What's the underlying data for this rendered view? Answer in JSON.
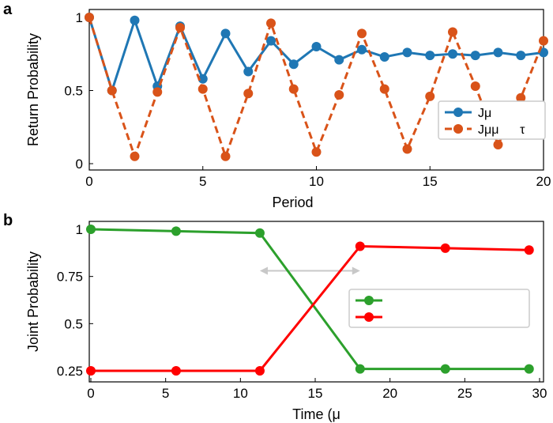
{
  "chart_data": [
    {
      "panel_label": "a",
      "type": "line",
      "xlabel": "Period",
      "ylabel": "Return Probability",
      "xlim": [
        0,
        20
      ],
      "ylim": [
        0,
        1
      ],
      "xticks": [
        "0",
        "5",
        "10",
        "15",
        "20"
      ],
      "yticks": [
        "0",
        "0.5",
        "1"
      ],
      "legend_placement": "right",
      "x": [
        0,
        1,
        2,
        3,
        4,
        5,
        6,
        7,
        8,
        9,
        10,
        11,
        12,
        13,
        14,
        15,
        16,
        17,
        18,
        19,
        20
      ],
      "series": [
        {
          "name": "Jμ",
          "color": "#1f77b4",
          "style": "solid",
          "values": [
            1,
            0.5,
            0.98,
            0.53,
            0.94,
            0.58,
            0.89,
            0.63,
            0.84,
            0.68,
            0.8,
            0.71,
            0.78,
            0.73,
            0.76,
            0.74,
            0.75,
            0.74,
            0.76,
            0.74,
            0.76
          ]
        },
        {
          "name": "Jμμ      τ",
          "color": "#d95319",
          "style": "dashed",
          "values": [
            1,
            0.5,
            0.05,
            0.49,
            0.93,
            0.51,
            0.05,
            0.48,
            0.96,
            0.51,
            0.08,
            0.47,
            0.89,
            0.51,
            0.1,
            0.46,
            0.9,
            0.53,
            0.13,
            0.45,
            0.84
          ]
        }
      ]
    },
    {
      "panel_label": "b",
      "type": "line",
      "xlabel": "Time (μ",
      "ylabel": "Joint Probability",
      "xlim": [
        0,
        30
      ],
      "ylim": [
        0.25,
        1
      ],
      "xticks": [
        "0",
        "5",
        "10",
        "15",
        "20",
        "25",
        "30"
      ],
      "yticks": [
        "0.25",
        "0.5",
        "0.75",
        "1"
      ],
      "legend_placement": "right",
      "annotation": {
        "type": "double-arrow",
        "x": [
          11.3,
          18
        ],
        "y": 0.78,
        "color": "#c8c8c8"
      },
      "series": [
        {
          "name": "",
          "color": "#2ca02c",
          "x": [
            0,
            5.7,
            11.3,
            18,
            23.7,
            29.3
          ],
          "values": [
            1,
            0.99,
            0.98,
            0.26,
            0.26,
            0.26
          ]
        },
        {
          "name": "",
          "color": "#ff0000",
          "x": [
            0,
            5.7,
            11.3,
            18,
            23.7,
            29.3
          ],
          "values": [
            0.25,
            0.25,
            0.25,
            0.91,
            0.9,
            0.89
          ]
        }
      ]
    }
  ]
}
